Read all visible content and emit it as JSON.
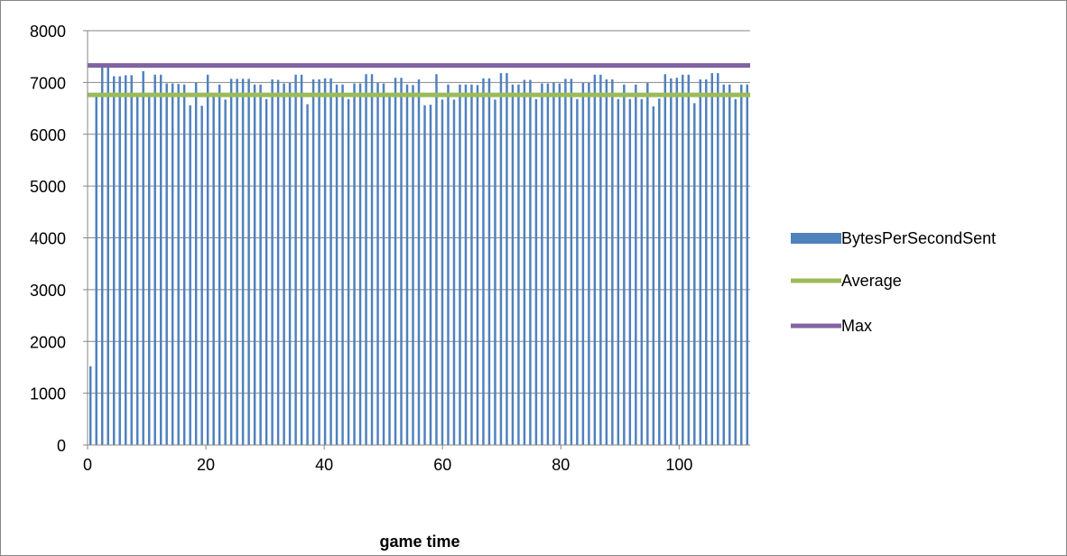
{
  "chart_data": {
    "type": "bar",
    "title": "",
    "xlabel": "game time",
    "ylabel": "",
    "xlim": [
      0,
      112
    ],
    "ylim": [
      0,
      8000
    ],
    "x_ticks": [
      0,
      20,
      40,
      60,
      80,
      100
    ],
    "y_ticks": [
      0,
      1000,
      2000,
      3000,
      4000,
      5000,
      6000,
      7000,
      8000
    ],
    "grid": "horizontal",
    "legend_position": "right",
    "series": [
      {
        "name": "BytesPerSecondSent",
        "kind": "bar",
        "color": "#4f81bd",
        "values": [
          1520,
          6760,
          7300,
          7320,
          7120,
          7120,
          7140,
          7140,
          6760,
          7220,
          6770,
          7150,
          7150,
          6980,
          6980,
          6970,
          6960,
          6560,
          7000,
          6550,
          7150,
          6770,
          6960,
          6670,
          7070,
          7070,
          7070,
          7070,
          6960,
          6960,
          6680,
          7060,
          7050,
          6980,
          6990,
          7150,
          7150,
          6580,
          7060,
          7060,
          7080,
          7080,
          6960,
          6960,
          6680,
          6980,
          6980,
          7160,
          7160,
          6990,
          6980,
          6780,
          7090,
          7090,
          6960,
          6950,
          7060,
          6560,
          6570,
          7160,
          6670,
          6960,
          6670,
          6960,
          6960,
          6960,
          6950,
          7080,
          7080,
          6670,
          7180,
          7180,
          6960,
          6960,
          7050,
          7050,
          6680,
          6980,
          6980,
          7000,
          6980,
          7070,
          7070,
          6680,
          6990,
          6990,
          7150,
          7150,
          7060,
          7060,
          6680,
          6960,
          6680,
          6960,
          6680,
          6990,
          6540,
          6690,
          7160,
          7080,
          7090,
          7150,
          7150,
          6600,
          7060,
          7060,
          7180,
          7180,
          6960,
          6960,
          6680,
          6960,
          6960
        ]
      },
      {
        "name": "Average",
        "kind": "line",
        "color": "#9bbb59",
        "value": 6760
      },
      {
        "name": "Max",
        "kind": "line",
        "color": "#8064a2",
        "value": 7330
      }
    ]
  }
}
